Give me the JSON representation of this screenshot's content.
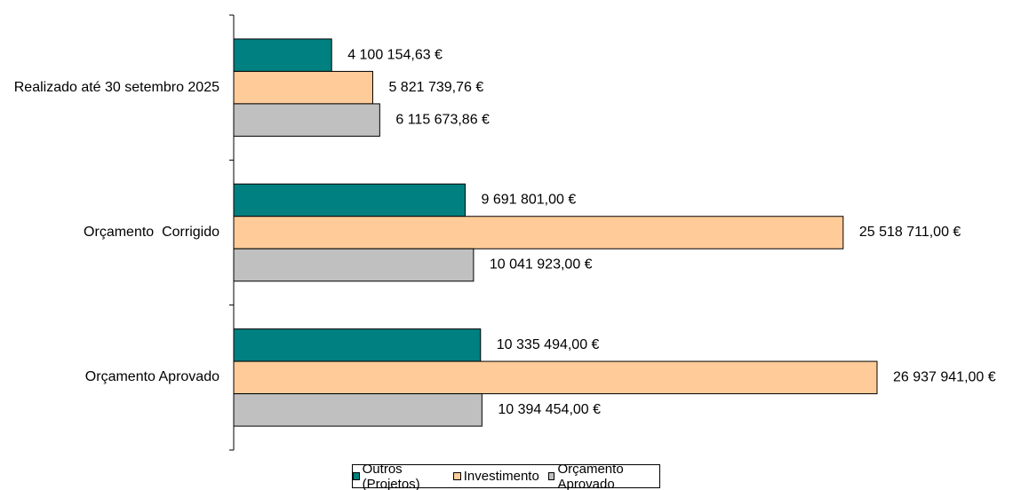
{
  "chart_data": {
    "type": "bar",
    "orientation": "horizontal",
    "categories": [
      "Realizado até 30 setembro 2025",
      "Orçamento  Corrigido",
      "Orçamento Aprovado"
    ],
    "series": [
      {
        "name": "Outros (Projetos)",
        "color": "#008080",
        "values": [
          4100154.63,
          9691801.0,
          10335494.0
        ],
        "value_labels": [
          "4 100 154,63 €",
          "9 691 801,00 €",
          "10 335 494,00 €"
        ]
      },
      {
        "name": "Investimento",
        "color": "#FFCC99",
        "values": [
          5821739.76,
          25518711.0,
          26937941.0
        ],
        "value_labels": [
          "5 821 739,76 €",
          "25 518 711,00 €",
          "26 937 941,00 €"
        ]
      },
      {
        "name": "Orçamento Aprovado",
        "color": "#C0C0C0",
        "values": [
          6115673.86,
          10041923.0,
          10394454.0
        ],
        "value_labels": [
          "6 115 673,86 €",
          "10 041 923,00 €",
          "10 394 454,00 €"
        ]
      }
    ],
    "legend": "bottom"
  }
}
